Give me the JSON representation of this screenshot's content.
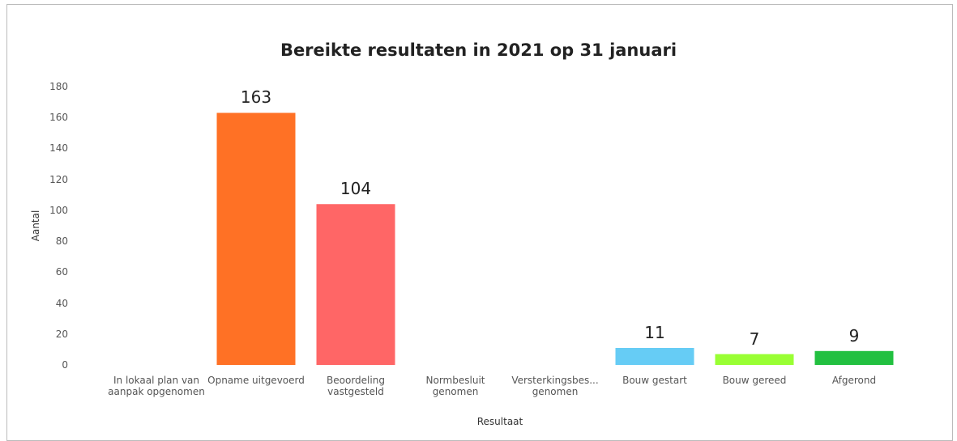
{
  "chart_data": {
    "type": "bar",
    "title": "Bereikte resultaten in 2021 op 31 januari",
    "x_label": "Resultaat",
    "y_label": "Aantal",
    "categories": [
      "In lokaal plan van aanpak opgenomen",
      "Opname uitgevoerd",
      "Beoordeling vastgesteld",
      "Normbesluit genomen",
      "Versterkingsbes... genomen",
      "Bouw gestart",
      "Bouw gereed",
      "Afgerond"
    ],
    "values": [
      null,
      163,
      104,
      null,
      null,
      11,
      7,
      9
    ],
    "colors": [
      null,
      "#ff7125",
      "#ff6666",
      null,
      null,
      "#66ccf5",
      "#99ff33",
      "#22c040"
    ],
    "ylim": [
      0,
      180
    ],
    "yticks": [
      0,
      20,
      40,
      60,
      80,
      100,
      120,
      140,
      160,
      180
    ],
    "grid": false
  }
}
